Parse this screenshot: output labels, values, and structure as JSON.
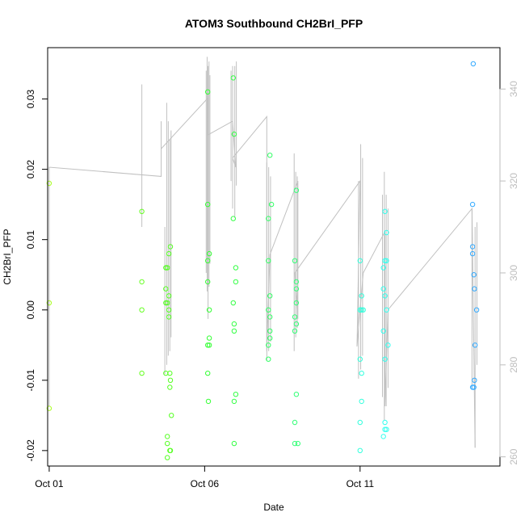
{
  "chart_data": {
    "type": "scatter",
    "title": "ATOM3 Southbound CH2BrI_PFP",
    "xlabel": "Date",
    "ylabel": "CH2BrI_PFP",
    "x_ticks": [
      {
        "day": 1,
        "label": "Oct 01"
      },
      {
        "day": 6,
        "label": "Oct 06"
      },
      {
        "day": 11,
        "label": "Oct 11"
      }
    ],
    "y_ticks": [
      -0.02,
      -0.01,
      0.0,
      0.01,
      0.02,
      0.03
    ],
    "y_tick_labels": [
      "-0.02",
      "-0.01",
      "0.00",
      "0.01",
      "0.02",
      "0.03"
    ],
    "y2_ticks": [
      260,
      280,
      300,
      320,
      340
    ],
    "y2_tick_labels": [
      "260",
      "280",
      "300",
      "320",
      "340"
    ],
    "xlim": [
      0.95,
      15.5
    ],
    "ylim": [
      -0.0222,
      0.0373
    ],
    "y2lim": [
      258,
      349
    ],
    "grid": false,
    "points": [
      {
        "day": 1.0,
        "v": 0.018,
        "c": "#aaff22"
      },
      {
        "day": 1.0,
        "v": 0.001,
        "c": "#aaff22"
      },
      {
        "day": 1.0,
        "v": -0.014,
        "c": "#aaff22"
      },
      {
        "day": 3.98,
        "v": 0.014,
        "c": "#66ff22"
      },
      {
        "day": 3.98,
        "v": 0.004,
        "c": "#66ff22"
      },
      {
        "day": 3.98,
        "v": 0.0,
        "c": "#66ff22"
      },
      {
        "day": 3.98,
        "v": -0.009,
        "c": "#66ff22"
      },
      {
        "day": 4.75,
        "v": 0.006,
        "c": "#55ff22"
      },
      {
        "day": 4.75,
        "v": 0.003,
        "c": "#55ff22"
      },
      {
        "day": 4.75,
        "v": 0.001,
        "c": "#55ff22"
      },
      {
        "day": 4.75,
        "v": -0.009,
        "c": "#55ff22"
      },
      {
        "day": 4.8,
        "v": 0.006,
        "c": "#55ff22"
      },
      {
        "day": 4.8,
        "v": 0.001,
        "c": "#55ff22"
      },
      {
        "day": 4.8,
        "v": -0.018,
        "c": "#55ff22"
      },
      {
        "day": 4.8,
        "v": -0.019,
        "c": "#55ff22"
      },
      {
        "day": 4.8,
        "v": -0.021,
        "c": "#55ff22"
      },
      {
        "day": 4.85,
        "v": 0.008,
        "c": "#55ff22"
      },
      {
        "day": 4.85,
        "v": 0.002,
        "c": "#55ff22"
      },
      {
        "day": 4.85,
        "v": 0.0,
        "c": "#55ff22"
      },
      {
        "day": 4.85,
        "v": -0.001,
        "c": "#55ff22"
      },
      {
        "day": 4.88,
        "v": -0.009,
        "c": "#55ff22"
      },
      {
        "day": 4.88,
        "v": -0.011,
        "c": "#55ff22"
      },
      {
        "day": 4.88,
        "v": -0.02,
        "c": "#55ff22"
      },
      {
        "day": 4.9,
        "v": 0.009,
        "c": "#55ff22"
      },
      {
        "day": 4.9,
        "v": -0.01,
        "c": "#55ff22"
      },
      {
        "day": 4.9,
        "v": -0.02,
        "c": "#55ff22"
      },
      {
        "day": 4.93,
        "v": -0.015,
        "c": "#55ff22"
      },
      {
        "day": 6.1,
        "v": 0.031,
        "c": "#33ff33"
      },
      {
        "day": 6.1,
        "v": 0.015,
        "c": "#33ff33"
      },
      {
        "day": 6.1,
        "v": 0.007,
        "c": "#33ff33"
      },
      {
        "day": 6.1,
        "v": 0.004,
        "c": "#33ff33"
      },
      {
        "day": 6.1,
        "v": -0.005,
        "c": "#33ff33"
      },
      {
        "day": 6.1,
        "v": -0.009,
        "c": "#33ff33"
      },
      {
        "day": 6.15,
        "v": 0.008,
        "c": "#33ff33"
      },
      {
        "day": 6.15,
        "v": 0.0,
        "c": "#33ff33"
      },
      {
        "day": 6.15,
        "v": -0.004,
        "c": "#33ff33"
      },
      {
        "day": 6.15,
        "v": -0.005,
        "c": "#33ff33"
      },
      {
        "day": 6.12,
        "v": -0.013,
        "c": "#33ff33"
      },
      {
        "day": 6.92,
        "v": 0.033,
        "c": "#33ff44"
      },
      {
        "day": 6.92,
        "v": 0.013,
        "c": "#33ff44"
      },
      {
        "day": 6.92,
        "v": 0.001,
        "c": "#33ff44"
      },
      {
        "day": 6.95,
        "v": 0.025,
        "c": "#33ff44"
      },
      {
        "day": 6.95,
        "v": -0.002,
        "c": "#33ff44"
      },
      {
        "day": 6.95,
        "v": -0.003,
        "c": "#33ff44"
      },
      {
        "day": 6.95,
        "v": -0.013,
        "c": "#33ff44"
      },
      {
        "day": 6.95,
        "v": -0.019,
        "c": "#33ff44"
      },
      {
        "day": 7.0,
        "v": 0.006,
        "c": "#33ff44"
      },
      {
        "day": 7.0,
        "v": 0.004,
        "c": "#33ff44"
      },
      {
        "day": 7.0,
        "v": -0.012,
        "c": "#33ff44"
      },
      {
        "day": 8.05,
        "v": 0.013,
        "c": "#33ff66"
      },
      {
        "day": 8.05,
        "v": 0.007,
        "c": "#33ff66"
      },
      {
        "day": 8.05,
        "v": 0.0,
        "c": "#33ff66"
      },
      {
        "day": 8.05,
        "v": -0.005,
        "c": "#33ff66"
      },
      {
        "day": 8.05,
        "v": -0.007,
        "c": "#33ff66"
      },
      {
        "day": 8.1,
        "v": 0.022,
        "c": "#33ff66"
      },
      {
        "day": 8.1,
        "v": 0.002,
        "c": "#33ff66"
      },
      {
        "day": 8.1,
        "v": -0.001,
        "c": "#33ff66"
      },
      {
        "day": 8.1,
        "v": -0.003,
        "c": "#33ff66"
      },
      {
        "day": 8.1,
        "v": -0.004,
        "c": "#33ff66"
      },
      {
        "day": 8.15,
        "v": 0.015,
        "c": "#33ff66"
      },
      {
        "day": 8.9,
        "v": 0.007,
        "c": "#33ff77"
      },
      {
        "day": 8.9,
        "v": -0.001,
        "c": "#33ff77"
      },
      {
        "day": 8.9,
        "v": -0.003,
        "c": "#33ff77"
      },
      {
        "day": 8.9,
        "v": -0.016,
        "c": "#33ff77"
      },
      {
        "day": 8.9,
        "v": -0.019,
        "c": "#33ff77"
      },
      {
        "day": 8.95,
        "v": 0.017,
        "c": "#33ff77"
      },
      {
        "day": 8.95,
        "v": 0.004,
        "c": "#33ff77"
      },
      {
        "day": 8.95,
        "v": 0.003,
        "c": "#33ff77"
      },
      {
        "day": 8.95,
        "v": 0.001,
        "c": "#33ff77"
      },
      {
        "day": 8.95,
        "v": -0.002,
        "c": "#33ff77"
      },
      {
        "day": 8.95,
        "v": -0.012,
        "c": "#33ff77"
      },
      {
        "day": 9.0,
        "v": -0.019,
        "c": "#33ff77"
      },
      {
        "day": 11.0,
        "v": 0.007,
        "c": "#33ffdd"
      },
      {
        "day": 11.0,
        "v": 0.0,
        "c": "#33ffdd"
      },
      {
        "day": 11.0,
        "v": -0.007,
        "c": "#33ffdd"
      },
      {
        "day": 11.0,
        "v": -0.016,
        "c": "#33ffdd"
      },
      {
        "day": 11.0,
        "v": -0.02,
        "c": "#33ffdd"
      },
      {
        "day": 11.05,
        "v": 0.002,
        "c": "#33ffdd"
      },
      {
        "day": 11.05,
        "v": 0.0,
        "c": "#33ffdd"
      },
      {
        "day": 11.05,
        "v": -0.009,
        "c": "#33ffdd"
      },
      {
        "day": 11.05,
        "v": -0.013,
        "c": "#33ffdd"
      },
      {
        "day": 11.1,
        "v": 0.0,
        "c": "#33ffdd"
      },
      {
        "day": 11.75,
        "v": 0.006,
        "c": "#33ffee"
      },
      {
        "day": 11.75,
        "v": 0.003,
        "c": "#33ffee"
      },
      {
        "day": 11.75,
        "v": -0.003,
        "c": "#33ffee"
      },
      {
        "day": 11.75,
        "v": -0.018,
        "c": "#33ffee"
      },
      {
        "day": 11.8,
        "v": 0.014,
        "c": "#33ffee"
      },
      {
        "day": 11.8,
        "v": 0.007,
        "c": "#33ffee"
      },
      {
        "day": 11.8,
        "v": 0.002,
        "c": "#33ffee"
      },
      {
        "day": 11.8,
        "v": -0.007,
        "c": "#33ffee"
      },
      {
        "day": 11.8,
        "v": -0.016,
        "c": "#33ffee"
      },
      {
        "day": 11.8,
        "v": -0.017,
        "c": "#33ffee"
      },
      {
        "day": 11.85,
        "v": 0.011,
        "c": "#33ffee"
      },
      {
        "day": 11.85,
        "v": 0.007,
        "c": "#33ffee"
      },
      {
        "day": 11.85,
        "v": 0.0,
        "c": "#33ffee"
      },
      {
        "day": 11.85,
        "v": -0.017,
        "c": "#33ffee"
      },
      {
        "day": 11.9,
        "v": -0.005,
        "c": "#33ffee"
      },
      {
        "day": 14.62,
        "v": 0.015,
        "c": "#33aaff"
      },
      {
        "day": 14.62,
        "v": 0.009,
        "c": "#33aaff"
      },
      {
        "day": 14.62,
        "v": 0.008,
        "c": "#33aaff"
      },
      {
        "day": 14.62,
        "v": -0.011,
        "c": "#33aaff"
      },
      {
        "day": 14.64,
        "v": 0.035,
        "c": "#33aaff"
      },
      {
        "day": 14.66,
        "v": 0.005,
        "c": "#33aaff"
      },
      {
        "day": 14.66,
        "v": -0.011,
        "c": "#33aaff"
      },
      {
        "day": 14.68,
        "v": 0.003,
        "c": "#33aaff"
      },
      {
        "day": 14.68,
        "v": -0.01,
        "c": "#33aaff"
      },
      {
        "day": 14.7,
        "v": -0.005,
        "c": "#33aaff"
      },
      {
        "day": 14.75,
        "v": 0.0,
        "c": "#33aaff"
      }
    ],
    "y2_path": [
      [
        1.0,
        271
      ],
      [
        1.0,
        323
      ],
      [
        4.6,
        321
      ],
      [
        4.6,
        333
      ],
      [
        4.6,
        327
      ],
      [
        6.1,
        338
      ],
      [
        6.1,
        330
      ],
      [
        6.9,
        333
      ],
      [
        7.0,
        323
      ],
      [
        6.9,
        325
      ],
      [
        8.0,
        334
      ],
      [
        8.0,
        283
      ],
      [
        8.1,
        304
      ],
      [
        9.0,
        320
      ],
      [
        9.0,
        290
      ],
      [
        8.9,
        300
      ],
      [
        11.0,
        320
      ],
      [
        10.9,
        284
      ],
      [
        11.1,
        300
      ],
      [
        11.8,
        309
      ],
      [
        11.8,
        271
      ],
      [
        11.9,
        292
      ],
      [
        14.6,
        314
      ],
      [
        14.7,
        262
      ]
    ],
    "y2_spikes": [
      {
        "day": 3.98,
        "lo": 310,
        "hi": 341
      },
      {
        "day": 4.72,
        "lo": 278,
        "hi": 310
      },
      {
        "day": 4.78,
        "lo": 280,
        "hi": 337
      },
      {
        "day": 4.83,
        "lo": 282,
        "hi": 333
      },
      {
        "day": 4.88,
        "lo": 283,
        "hi": 329
      },
      {
        "day": 4.92,
        "lo": 286,
        "hi": 331
      },
      {
        "day": 6.05,
        "lo": 300,
        "hi": 344
      },
      {
        "day": 6.08,
        "lo": 296,
        "hi": 347
      },
      {
        "day": 6.11,
        "lo": 290,
        "hi": 345
      },
      {
        "day": 6.14,
        "lo": 297,
        "hi": 346
      },
      {
        "day": 6.17,
        "lo": 302,
        "hi": 343
      },
      {
        "day": 6.85,
        "lo": 320,
        "hi": 344
      },
      {
        "day": 6.9,
        "lo": 314,
        "hi": 345
      },
      {
        "day": 6.97,
        "lo": 312,
        "hi": 345
      },
      {
        "day": 7.02,
        "lo": 319,
        "hi": 346
      },
      {
        "day": 8.0,
        "lo": 281,
        "hi": 324
      },
      {
        "day": 8.06,
        "lo": 283,
        "hi": 323
      },
      {
        "day": 8.12,
        "lo": 285,
        "hi": 321
      },
      {
        "day": 8.88,
        "lo": 283,
        "hi": 326
      },
      {
        "day": 8.93,
        "lo": 286,
        "hi": 322
      },
      {
        "day": 8.98,
        "lo": 288,
        "hi": 321
      },
      {
        "day": 10.95,
        "lo": 277,
        "hi": 320
      },
      {
        "day": 11.02,
        "lo": 279,
        "hi": 328
      },
      {
        "day": 11.08,
        "lo": 282,
        "hi": 325
      },
      {
        "day": 11.72,
        "lo": 273,
        "hi": 317
      },
      {
        "day": 11.78,
        "lo": 268,
        "hi": 322
      },
      {
        "day": 11.84,
        "lo": 271,
        "hi": 317
      },
      {
        "day": 11.9,
        "lo": 275,
        "hi": 314
      },
      {
        "day": 14.6,
        "lo": 275,
        "hi": 314
      },
      {
        "day": 14.7,
        "lo": 262,
        "hi": 310
      },
      {
        "day": 14.76,
        "lo": 280,
        "hi": 311
      }
    ],
    "colors": {
      "axis": "#000000",
      "y2_axis": "#bdbdbd",
      "y2_line": "#c0c0c0"
    }
  }
}
